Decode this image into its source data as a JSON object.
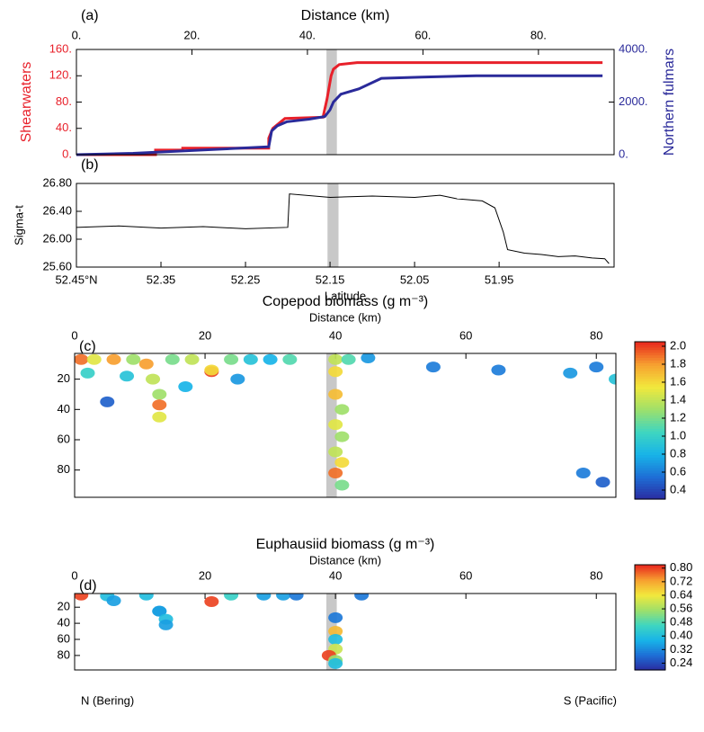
{
  "chart_data": [
    {
      "type": "line",
      "panel_label": "(a)",
      "xlabel": "Distance (km)",
      "xlim": [
        0,
        93.1
      ],
      "xticks": [
        {
          "value": 0,
          "label": "0."
        },
        {
          "value": 20,
          "label": "20."
        },
        {
          "value": 40,
          "label": "40."
        },
        {
          "value": 60,
          "label": "60."
        },
        {
          "value": 80,
          "label": "80."
        }
      ],
      "ylim": [
        0,
        160
      ],
      "yticks": [
        {
          "value": 0,
          "label": "0."
        },
        {
          "value": 40,
          "label": "40."
        },
        {
          "value": 80,
          "label": "80."
        },
        {
          "value": 120,
          "label": "120."
        },
        {
          "value": 160,
          "label": "160."
        }
      ],
      "y2lim": [
        0,
        4000
      ],
      "y2ticks": [
        {
          "value": 0,
          "label": "0."
        },
        {
          "value": 2000,
          "label": "2000."
        },
        {
          "value": 4000,
          "label": "4000."
        }
      ],
      "highlight_x": [
        43.3,
        45.1
      ],
      "series": [
        {
          "name": "Shearwaters",
          "color": "#e8202a",
          "x": [
            0,
            13.7,
            13.7,
            18.4,
            18.4,
            33.3,
            33.3,
            34,
            36.1,
            42.7,
            43.4,
            44.1,
            44.5,
            45.5,
            48.6,
            91.1
          ],
          "values": [
            0,
            0,
            7,
            7,
            10,
            10,
            25,
            40,
            55,
            57,
            85,
            120,
            130,
            137,
            140,
            140
          ]
        },
        {
          "name": "Northern fulmars",
          "color": "#2a2a9a",
          "axis": "y2",
          "x": [
            0,
            9.8,
            33.3,
            33.8,
            34.8,
            36.4,
            40.3,
            43,
            43.9,
            44.5,
            45.8,
            48.9,
            52.8,
            59.8,
            69.2,
            91.1
          ],
          "values": [
            0,
            50,
            300,
            900,
            1100,
            1250,
            1350,
            1450,
            1700,
            2000,
            2300,
            2500,
            2900,
            2950,
            3000,
            3000
          ]
        }
      ]
    },
    {
      "type": "line",
      "panel_label": "(b)",
      "xlabel": "Latitude",
      "ylabel": "Sigma-t",
      "xlim": [
        52.45,
        51.814
      ],
      "xticks": [
        {
          "value": 52.45,
          "label": "52.45°N"
        },
        52.35,
        52.25,
        52.15,
        52.05,
        51.95
      ],
      "ylim": [
        25.6,
        26.8
      ],
      "yticks": [
        {
          "value": 25.6,
          "label": "25.60"
        },
        {
          "value": 26.0,
          "label": "26.00"
        },
        {
          "value": 26.4,
          "label": "26.40"
        },
        {
          "value": 26.8,
          "label": "26.80"
        }
      ],
      "highlight_x": [
        52.153,
        52.14
      ],
      "series": [
        {
          "color": "#000000",
          "x": [
            52.45,
            52.4,
            52.35,
            52.3,
            52.25,
            52.2,
            52.198,
            52.15,
            52.1,
            52.05,
            52.02,
            52.0,
            51.97,
            51.955,
            51.945,
            51.94,
            51.92,
            51.9,
            51.88,
            51.86,
            51.84,
            51.825,
            51.82
          ],
          "values": [
            26.17,
            26.19,
            26.16,
            26.18,
            26.15,
            26.17,
            26.65,
            26.6,
            26.62,
            26.6,
            26.63,
            26.58,
            26.55,
            26.45,
            26.1,
            25.85,
            25.8,
            25.78,
            25.75,
            25.76,
            25.73,
            25.72,
            25.65
          ]
        }
      ]
    },
    {
      "type": "heatmap",
      "panel_label": "(c)",
      "title": "Copepod biomass (g m⁻³)",
      "xlabel": "Distance (km)",
      "xlim": [
        0,
        83
      ],
      "xticks": [
        0,
        20,
        40,
        60,
        80
      ],
      "ylim": [
        3,
        98
      ],
      "yticks": [
        20,
        40,
        60,
        80
      ],
      "highlight_x": [
        38.6,
        40.2
      ],
      "colormap": [
        "#2a2aa0",
        "#1e6fd6",
        "#18b4e8",
        "#3fd6c0",
        "#9fe06a",
        "#f2e83c",
        "#f7a030",
        "#e8281e"
      ],
      "clim": [
        0.3,
        2.05
      ],
      "cticks": [
        {
          "value": 2.0,
          "label": "2.0"
        },
        1.8,
        1.6,
        1.4,
        1.2,
        {
          "value": 1.0,
          "label": "1.0"
        },
        0.8,
        0.6,
        0.4
      ],
      "x": [
        1,
        3,
        6,
        9,
        11,
        15,
        18,
        21,
        24,
        27,
        30,
        33,
        2,
        8,
        12,
        21,
        13,
        13,
        13,
        40,
        40,
        40,
        41,
        40,
        41,
        40,
        41,
        40,
        41,
        42,
        45,
        55,
        65,
        76,
        80,
        83,
        78,
        81,
        5,
        17,
        25
      ],
      "y": [
        7,
        7,
        7,
        7,
        10,
        7,
        7,
        15,
        7,
        7,
        7,
        7,
        16,
        18,
        20,
        14,
        30,
        37,
        45,
        7,
        15,
        30,
        40,
        50,
        58,
        68,
        75,
        82,
        90,
        7,
        6,
        12,
        14,
        16,
        12,
        20,
        82,
        88,
        35,
        25,
        20
      ],
      "values": [
        1.9,
        1.5,
        1.8,
        1.3,
        1.8,
        1.2,
        1.4,
        2.0,
        1.2,
        0.9,
        0.8,
        1.1,
        1.0,
        0.9,
        1.4,
        1.6,
        1.3,
        1.9,
        1.5,
        1.4,
        1.6,
        1.7,
        1.3,
        1.5,
        1.3,
        1.4,
        1.6,
        1.9,
        1.2,
        1.1,
        0.7,
        0.6,
        0.6,
        0.7,
        0.6,
        0.9,
        0.6,
        0.5,
        0.5,
        0.8,
        0.7
      ]
    },
    {
      "type": "heatmap",
      "panel_label": "(d)",
      "title": "Euphausiid biomass (g m⁻³)",
      "xlabel": "Distance (km)",
      "xlim": [
        0,
        83
      ],
      "xticks": [
        0,
        20,
        40,
        60,
        80
      ],
      "ylim": [
        3,
        98
      ],
      "yticks": [
        20,
        40,
        60,
        80
      ],
      "highlight_x": [
        38.6,
        40.2
      ],
      "colormap": [
        "#2a2aa0",
        "#1e6fd6",
        "#18b4e8",
        "#3fd6c0",
        "#9fe06a",
        "#f2e83c",
        "#f7a030",
        "#e8281e"
      ],
      "clim": [
        0.2,
        0.82
      ],
      "cticks": [
        {
          "value": 0.8,
          "label": "0.80"
        },
        0.72,
        0.64,
        0.56,
        0.48,
        {
          "value": 0.4,
          "label": "0.40"
        },
        0.32,
        0.24
      ],
      "x": [
        1,
        5,
        6,
        11,
        13,
        21,
        24,
        29,
        32,
        34,
        13,
        14,
        14,
        40,
        40,
        40,
        40,
        39,
        40,
        40,
        44
      ],
      "y": [
        5,
        6,
        12,
        5,
        25,
        13,
        5,
        5,
        5,
        5,
        25,
        35,
        42,
        33,
        50,
        60,
        72,
        80,
        86,
        90,
        5
      ],
      "values": [
        0.8,
        0.4,
        0.35,
        0.4,
        0.35,
        0.8,
        0.45,
        0.35,
        0.35,
        0.3,
        0.35,
        0.4,
        0.35,
        0.3,
        0.7,
        0.4,
        0.6,
        0.8,
        0.55,
        0.4,
        0.3
      ]
    }
  ],
  "footer": {
    "left": "N (Bering)",
    "right": "S (Pacific)"
  }
}
